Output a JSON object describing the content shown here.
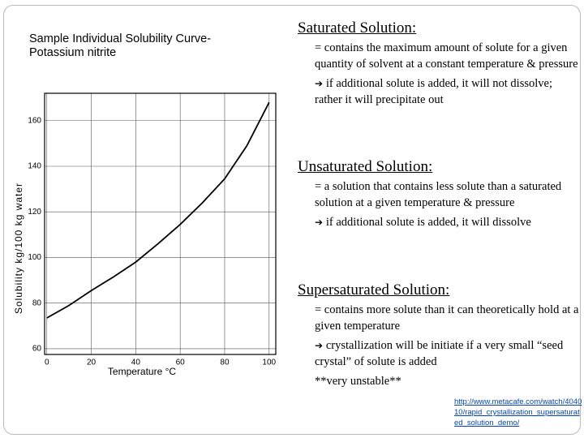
{
  "left_title": "Sample Individual Solubility Curve- Potassium nitrite",
  "chart_data": {
    "type": "line",
    "x_label": "Temperature °C",
    "y_label": "Solubility kg/100 kg water",
    "x": [
      0,
      10,
      20,
      30,
      40,
      50,
      60,
      70,
      80,
      90,
      100
    ],
    "series": [
      {
        "name": "Potassium nitrite",
        "color": "#000000",
        "values": [
          73.5,
          79,
          85.5,
          91.5,
          98,
          106,
          114.5,
          124,
          134.5,
          149,
          168
        ]
      }
    ],
    "xlim": [
      -1,
      103
    ],
    "xticks": [
      0,
      20,
      40,
      60,
      80,
      100
    ],
    "ylim": [
      57.5,
      172
    ],
    "yticks": [
      60,
      80,
      100,
      120,
      140,
      160
    ],
    "grid": true
  },
  "sections": [
    {
      "heading": "Saturated Solution:",
      "definition": "= contains the maximum amount of solute for a given quantity of solvent at a constant temperature & pressure",
      "note": "if additional solute is added, it will not dissolve; rather it will precipitate out"
    },
    {
      "heading": "Unsaturated Solution:",
      "definition": "= a solution that contains less solute than a saturated solution at a given temperature & pressure",
      "note": "if additional solute is added, it will dissolve"
    },
    {
      "heading": "Supersaturated Solution:",
      "definition": "= contains more solute than it can theoretically hold at a given temperature",
      "note": "crystallization will be initiate if a very small “seed crystal” of solute is added",
      "extra": "**very unstable**"
    }
  ],
  "link": "http://www.metacafe.com/watch/404010/rapid_crystallization_supersaturated_solution_demo/"
}
